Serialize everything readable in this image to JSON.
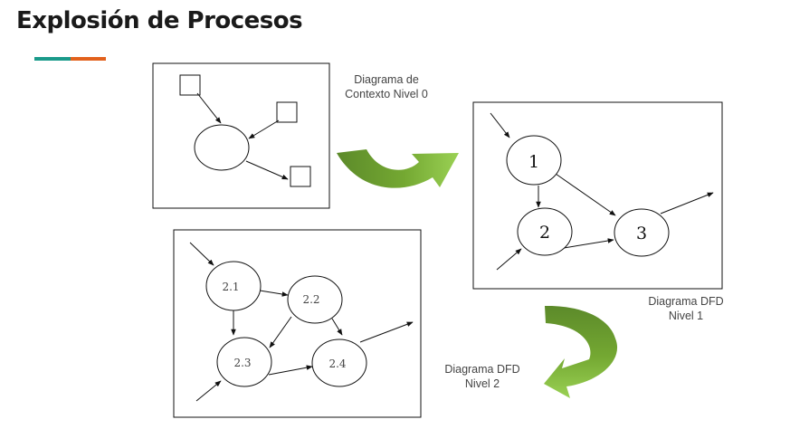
{
  "title": "Explosión de Procesos",
  "accent_colors": [
    "#1a9a8a",
    "#e2611c"
  ],
  "arrow_colors": {
    "dark": "#5c8a2a",
    "light": "#8cc63f"
  },
  "captions": {
    "context": [
      "Diagrama de",
      "Contexto Nivel 0"
    ],
    "level1": [
      "Diagrama DFD",
      "Nivel 1"
    ],
    "level2": [
      "Diagrama DFD",
      "Nivel 2"
    ]
  },
  "level1_nodes": [
    "1",
    "2",
    "3"
  ],
  "level2_nodes": [
    "2.1",
    "2.2",
    "2.3",
    "2.4"
  ]
}
